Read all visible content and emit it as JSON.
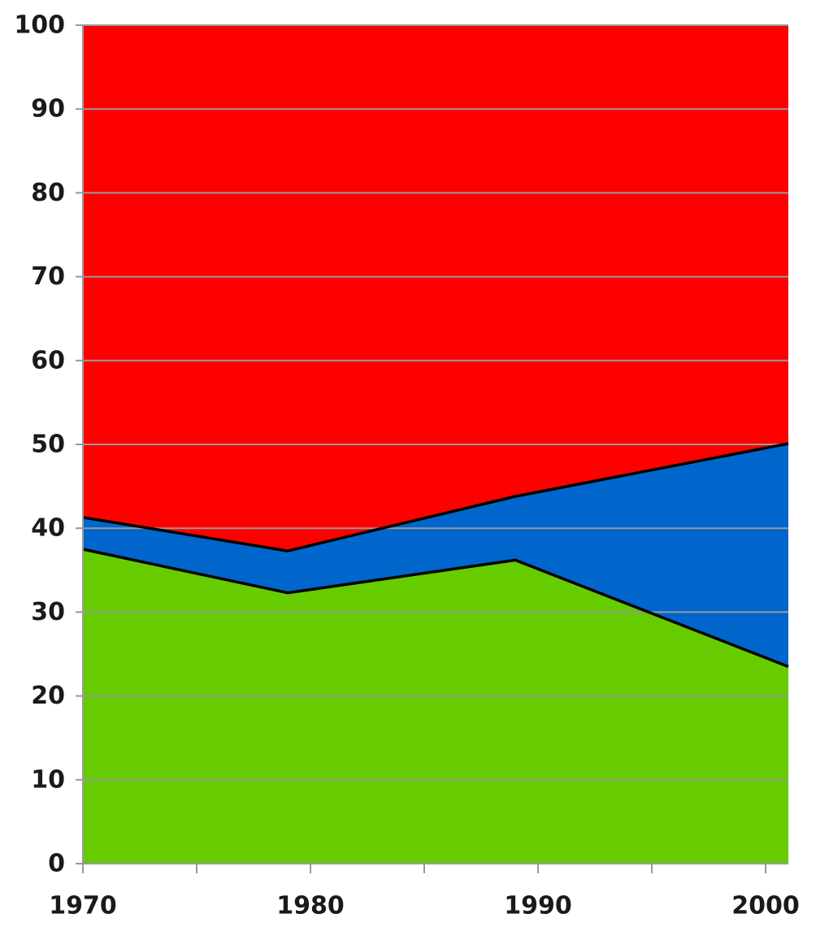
{
  "chart_data": {
    "type": "area",
    "stacked": true,
    "x": [
      1970,
      1979,
      1989,
      2001
    ],
    "series": [
      {
        "values": [
          37.5,
          32.3,
          36.2,
          23.5
        ],
        "color": "#66cc00"
      },
      {
        "values": [
          3.8,
          5.0,
          7.6,
          26.6
        ],
        "color": "#0066cc"
      },
      {
        "values": [
          58.7,
          62.7,
          56.2,
          49.9
        ],
        "color": "#ff0000"
      }
    ],
    "xlim": [
      1970,
      2001
    ],
    "ylim": [
      0,
      100
    ],
    "x_tick_values": [
      1970,
      1975,
      1980,
      1985,
      1990,
      1995,
      2000
    ],
    "x_tick_labels": [
      "1970",
      "1980",
      "1990",
      "2000"
    ],
    "y_tick_labels": [
      "0",
      "10",
      "20",
      "30",
      "40",
      "50",
      "60",
      "70",
      "80",
      "90",
      "100"
    ],
    "grid": true,
    "grid_color": "#999999",
    "boundary_line_color": "#000000"
  }
}
